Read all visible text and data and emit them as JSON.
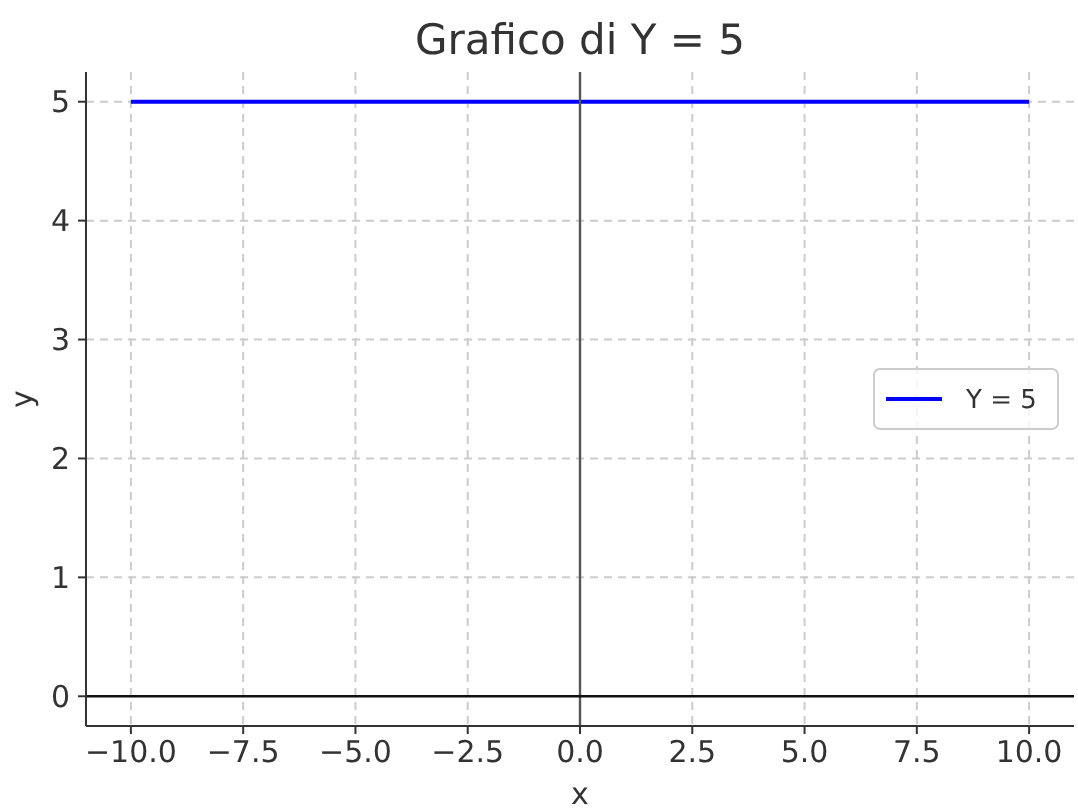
{
  "chart_data": {
    "type": "line",
    "title": "Grafico di Y = 5",
    "xlabel": "x",
    "ylabel": "y",
    "x": [
      -10,
      10
    ],
    "series": [
      {
        "name": "Y = 5",
        "color": "#0000ff",
        "values": [
          5,
          5
        ]
      }
    ],
    "xlim": [
      -11,
      11
    ],
    "ylim": [
      -0.25,
      5.25
    ],
    "xticks": [
      {
        "value": -10,
        "label": "−10.0"
      },
      {
        "value": -7.5,
        "label": "−7.5"
      },
      {
        "value": -5,
        "label": "−5.0"
      },
      {
        "value": -2.5,
        "label": "−2.5"
      },
      {
        "value": 0,
        "label": "0.0"
      },
      {
        "value": 2.5,
        "label": "2.5"
      },
      {
        "value": 5,
        "label": "5.0"
      },
      {
        "value": 7.5,
        "label": "7.5"
      },
      {
        "value": 10,
        "label": "10.0"
      }
    ],
    "yticks": [
      0,
      1,
      2,
      3,
      4,
      5
    ],
    "ref_lines": [
      {
        "axis": "x",
        "value": 0,
        "color": "#555555"
      },
      {
        "axis": "y",
        "value": 0,
        "color": "#111111"
      }
    ],
    "grid": true,
    "legend": "right",
    "line_style": "solid",
    "marker": "none"
  }
}
